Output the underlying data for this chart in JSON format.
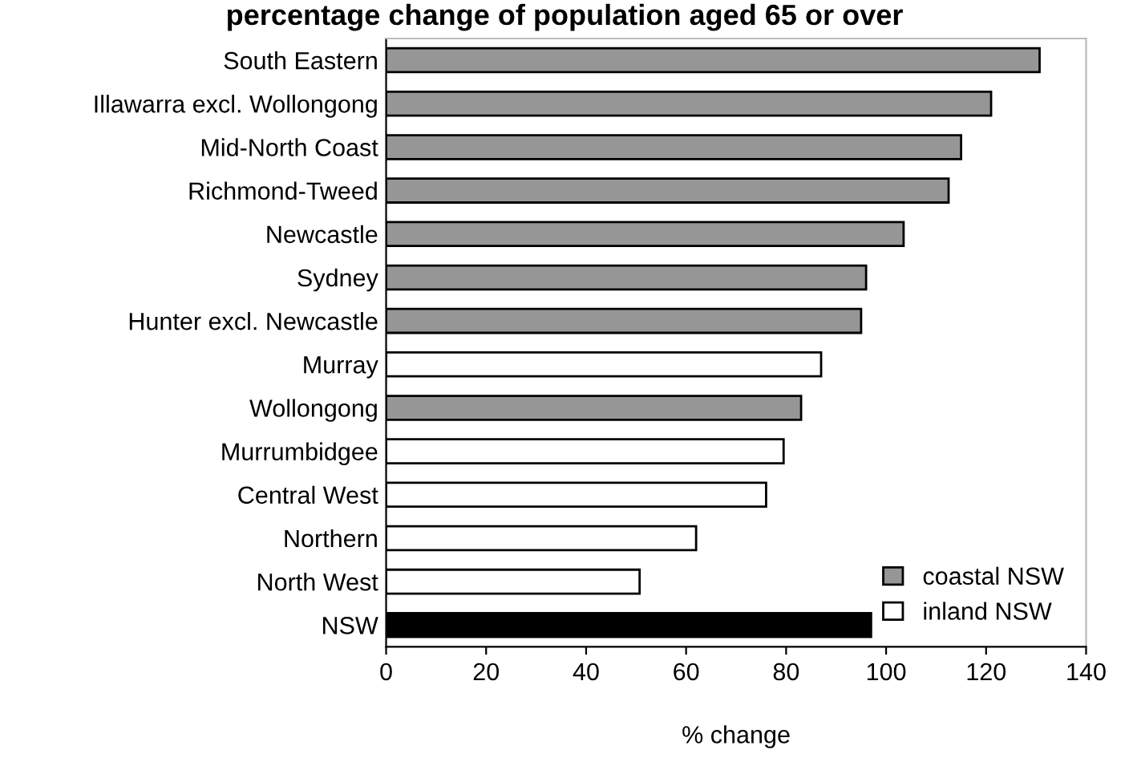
{
  "chart_data": {
    "type": "bar",
    "orientation": "horizontal",
    "title": "percentage change of population aged 65 or over",
    "xlabel": "% change",
    "categories": [
      "South Eastern",
      "Illawarra excl. Wollongong",
      "Mid-North Coast",
      "Richmond-Tweed",
      "Newcastle",
      "Sydney",
      "Hunter excl. Newcastle",
      "Murray",
      "Wollongong",
      "Murrumbidgee",
      "Central West",
      "Northern",
      "North West",
      "NSW"
    ],
    "series": [
      {
        "name": "coastal NSW",
        "color": "#969696",
        "values": [
          130.7,
          121,
          115,
          112.5,
          103.5,
          96,
          95,
          null,
          83,
          null,
          null,
          null,
          null,
          null
        ]
      },
      {
        "name": "inland NSW",
        "color": "#ffffff",
        "values": [
          null,
          null,
          null,
          null,
          null,
          null,
          null,
          87,
          null,
          79.5,
          76,
          62,
          50.7,
          null
        ]
      },
      {
        "color": "#000000",
        "values": [
          null,
          null,
          null,
          null,
          null,
          null,
          null,
          null,
          null,
          null,
          null,
          null,
          null,
          97
        ]
      }
    ],
    "xlim": [
      0,
      140
    ],
    "xticks": [
      0,
      20,
      40,
      60,
      80,
      100,
      120,
      140
    ],
    "grid": false,
    "legend": "bottom right"
  }
}
